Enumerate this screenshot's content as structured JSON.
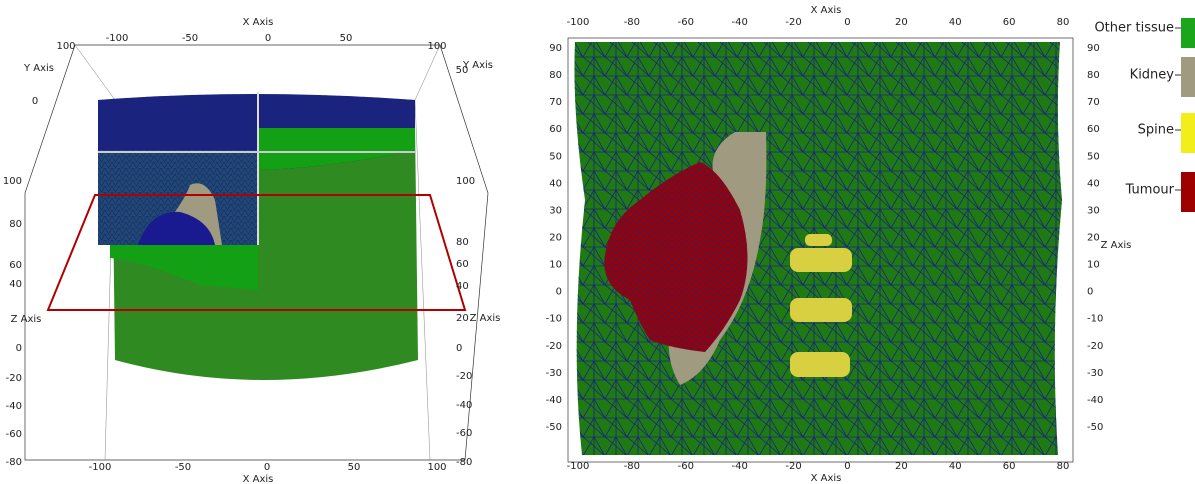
{
  "left_view": {
    "x_axis_label": "X Axis",
    "y_axis_label": "Y Axis",
    "z_axis_label": "Z Axis",
    "top_x_ticks": [
      -100,
      -50,
      0,
      50
    ],
    "bottom_x_ticks": [
      -100,
      -50,
      0,
      50,
      100
    ],
    "y_ticks_left": [
      100,
      0
    ],
    "y_ticks_right": [
      100,
      50
    ],
    "z_ticks_left": [
      100,
      80,
      60,
      40,
      0,
      -20,
      -40,
      -60,
      -80
    ],
    "z_ticks_right": [
      100,
      80,
      60,
      40,
      20,
      0,
      -20,
      -40,
      -60,
      -80
    ]
  },
  "right_view": {
    "x_axis_label": "X Axis",
    "z_axis_label": "Z Axis",
    "x_ticks": [
      -100,
      -80,
      -60,
      -40,
      -20,
      0,
      20,
      40,
      60,
      80
    ],
    "z_ticks": [
      90,
      80,
      70,
      60,
      50,
      40,
      30,
      20,
      10,
      0,
      -10,
      -20,
      -30,
      -40,
      -50
    ]
  },
  "legend": [
    {
      "name": "Other tissue",
      "color": "#1aa51a"
    },
    {
      "name": "Kidney",
      "color": "#a09a80"
    },
    {
      "name": "Spine",
      "color": "#f2ee1a"
    },
    {
      "name": "Tumour",
      "color": "#9e0000"
    }
  ]
}
